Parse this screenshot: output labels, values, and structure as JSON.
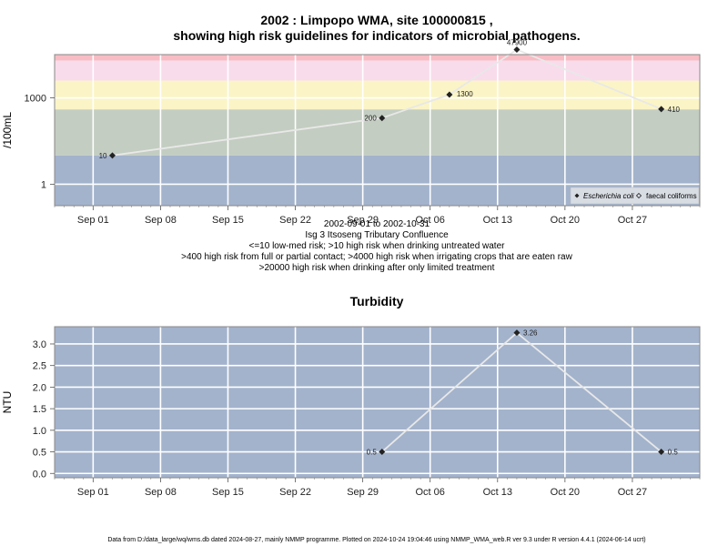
{
  "chart_data": [
    {
      "type": "line",
      "title": "2002 : Limpopo WMA, site 100000815 ,",
      "subtitle": "showing high risk guidelines for indicators of microbial pathogens.",
      "ylabel": "/100mL",
      "yscale": "log",
      "ylim": [
        0.18,
        32000
      ],
      "xlim": [
        "2002-08-28",
        "2002-11-03"
      ],
      "y_ticks": [
        {
          "value": 1,
          "label": "1"
        },
        {
          "value": 1000,
          "label": "1000"
        }
      ],
      "x_ticks": [
        "Sep 01",
        "Sep 08",
        "Sep 15",
        "Sep 22",
        "Sep 29",
        "Oct 06",
        "Oct 13",
        "Oct 20",
        "Oct 27"
      ],
      "x_tick_dates": [
        "2002-09-01",
        "2002-09-08",
        "2002-09-15",
        "2002-09-22",
        "2002-09-29",
        "2002-10-06",
        "2002-10-13",
        "2002-10-20",
        "2002-10-27"
      ],
      "bands": [
        {
          "from": 0.18,
          "to": 10,
          "color": "#a3b3cc"
        },
        {
          "from": 10,
          "to": 400,
          "color": "#c3cdc1"
        },
        {
          "from": 400,
          "to": 4000,
          "color": "#fbf4c6"
        },
        {
          "from": 4000,
          "to": 20000,
          "color": "#f9dcec"
        },
        {
          "from": 20000,
          "to": 32000,
          "color": "#f8bcc4"
        }
      ],
      "series": [
        {
          "name": "Escherichia coli",
          "marker": "filled-diamond",
          "line_color": "#e8e8e8",
          "x": [
            "2002-09-03",
            "2002-10-01",
            "2002-10-08",
            "2002-10-15",
            "2002-10-30"
          ],
          "values": [
            10,
            200,
            1300,
            47900,
            410
          ],
          "labels": [
            "10",
            "200",
            "1300",
            "47900",
            "410"
          ]
        }
      ],
      "legend": {
        "position": "bottom-right",
        "entries": [
          {
            "label": "Escherichia coli",
            "marker": "filled-diamond"
          },
          {
            "label": "faecal coliforms",
            "marker": "open-diamond"
          }
        ]
      },
      "notes": [
        "2002-09-01 to 2002-10-31",
        "Isg 3 Itsoseng Tributary Confluence",
        "<=10 low-med risk; >10 high risk when drinking untreated water",
        ">400 high risk from full or partial contact; >4000 high risk when irrigating crops that are eaten raw",
        ">20000 high risk when drinking after only limited treatment"
      ]
    },
    {
      "type": "line",
      "title": "Turbidity",
      "ylabel": "NTU",
      "ylim": [
        -0.1,
        3.4
      ],
      "xlim": [
        "2002-08-28",
        "2002-11-03"
      ],
      "y_ticks": [
        {
          "value": 0,
          "label": "0.0"
        },
        {
          "value": 0.5,
          "label": "0.5"
        },
        {
          "value": 1,
          "label": "1.0"
        },
        {
          "value": 1.5,
          "label": "1.5"
        },
        {
          "value": 2,
          "label": "2.0"
        },
        {
          "value": 2.5,
          "label": "2.5"
        },
        {
          "value": 3,
          "label": "3.0"
        }
      ],
      "x_ticks": [
        "Sep 01",
        "Sep 08",
        "Sep 15",
        "Sep 22",
        "Sep 29",
        "Oct 06",
        "Oct 13",
        "Oct 20",
        "Oct 27"
      ],
      "x_tick_dates": [
        "2002-09-01",
        "2002-09-08",
        "2002-09-15",
        "2002-09-22",
        "2002-09-29",
        "2002-10-06",
        "2002-10-13",
        "2002-10-20",
        "2002-10-27"
      ],
      "background": "#a3b3cc",
      "series": [
        {
          "marker": "filled-diamond",
          "line_color": "#e8e8e8",
          "x": [
            "2002-10-01",
            "2002-10-15",
            "2002-10-30"
          ],
          "values": [
            0.5,
            3.26,
            0.5
          ],
          "labels": [
            "0.5",
            "3.26",
            "0.5"
          ]
        }
      ]
    }
  ],
  "footer": "Data from D:/data_large/wq/wms.db dated 2024-08-27, mainly NMMP programme. Plotted on 2024-10-24 19:04:46 using NMMP_WMA_web.R ver 9.3 under R version 4.4.1 (2024-06-14 ucrt)"
}
